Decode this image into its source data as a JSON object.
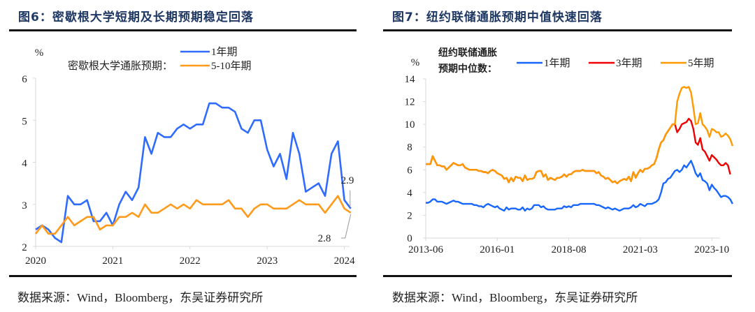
{
  "left": {
    "title": "图6：密歇根大学短期及长期预期稳定回落",
    "source": "数据来源：Wind，Bloomberg，东吴证券研究所"
  },
  "right": {
    "title": "图7：纽约联储通胀预期中值快速回落",
    "source": "数据来源：Wind，Bloomberg，东吴证券研究所"
  },
  "chart_data": [
    {
      "type": "line",
      "title": "图6：密歇根大学短期及长期预期稳定回落",
      "ylabel": "%",
      "legend_title": "密歇根大学通胀预期：",
      "legend_position": "top-center",
      "ylim": [
        2,
        6
      ],
      "yticks": [
        "2",
        "3",
        "4",
        "5",
        "6"
      ],
      "xticks": [
        "2020",
        "2021",
        "2022",
        "2023",
        "2024"
      ],
      "x_start": "2020-01",
      "x_end": "2024-02",
      "annotations": [
        "2.9",
        "2.8"
      ],
      "series": [
        {
          "name": "1年期",
          "color": "#2f6bff",
          "values": [
            2.4,
            2.5,
            2.4,
            2.2,
            2.1,
            3.2,
            3.0,
            3.0,
            3.1,
            2.6,
            2.6,
            2.8,
            2.5,
            3.0,
            3.3,
            3.1,
            3.4,
            4.6,
            4.2,
            4.7,
            4.6,
            4.6,
            4.8,
            4.9,
            4.8,
            4.9,
            4.9,
            5.4,
            5.4,
            5.3,
            5.3,
            5.2,
            4.8,
            4.7,
            5.0,
            5.0,
            4.3,
            3.9,
            4.2,
            3.6,
            4.7,
            4.2,
            3.3,
            3.4,
            3.5,
            3.2,
            4.2,
            4.5,
            3.1,
            2.9
          ]
        },
        {
          "name": "5-10年期",
          "color": "#ff9a1a",
          "values": [
            2.3,
            2.5,
            2.3,
            2.3,
            2.5,
            2.7,
            2.5,
            2.6,
            2.7,
            2.7,
            2.4,
            2.5,
            2.5,
            2.7,
            2.7,
            2.8,
            2.7,
            3.0,
            2.8,
            2.8,
            2.9,
            3.0,
            2.9,
            3.0,
            2.9,
            3.1,
            3.0,
            3.0,
            3.0,
            3.0,
            3.1,
            2.9,
            2.9,
            2.7,
            2.9,
            3.0,
            3.0,
            2.9,
            2.9,
            2.9,
            3.0,
            3.1,
            3.0,
            3.0,
            3.0,
            2.8,
            3.0,
            3.2,
            2.9,
            2.8
          ]
        }
      ]
    },
    {
      "type": "line",
      "title": "图7：纽约联储通胀预期中值快速回落",
      "ylabel": "%",
      "legend_title": "纽约联储通胀预期中位数：",
      "legend_position": "top",
      "ylim": [
        0,
        14
      ],
      "yticks": [
        "0",
        "2",
        "4",
        "6",
        "8",
        "10",
        "12",
        "14"
      ],
      "xticks": [
        "2013-06",
        "2016-01",
        "2018-08",
        "2021-03",
        "2023-10"
      ],
      "x_start": "2013-06",
      "x_end": "2024-01",
      "series": [
        {
          "name": "1年期",
          "color": "#1766ff",
          "values": [
            3.1,
            3.1,
            3.2,
            3.4,
            3.4,
            3.2,
            3.2,
            3.2,
            3.1,
            3.0,
            3.1,
            3.2,
            3.3,
            3.2,
            3.2,
            3.1,
            3.0,
            3.0,
            3.0,
            3.0,
            3.0,
            2.9,
            2.9,
            2.8,
            2.8,
            2.7,
            2.9,
            3.0,
            2.9,
            2.8,
            2.7,
            2.8,
            2.6,
            2.5,
            2.4,
            2.7,
            2.5,
            2.6,
            2.6,
            2.6,
            2.5,
            2.5,
            2.7,
            2.4,
            2.6,
            2.5,
            2.6,
            2.9,
            2.9,
            2.9,
            2.7,
            2.8,
            2.6,
            2.5,
            2.5,
            2.5,
            2.5,
            2.6,
            2.6,
            2.6,
            2.8,
            2.7,
            2.8,
            2.7,
            2.9,
            2.9,
            2.9,
            3.0,
            3.0,
            3.0,
            3.0,
            3.0,
            3.0,
            3.0,
            2.9,
            2.9,
            2.8,
            2.7,
            2.6,
            2.7,
            2.6,
            2.5,
            2.6,
            2.5,
            2.4,
            2.5,
            2.6,
            2.6,
            2.6,
            2.7,
            2.9,
            2.7,
            2.8,
            3.0,
            2.9,
            2.8,
            3.0,
            3.0,
            3.0,
            3.1,
            3.2,
            3.4,
            4.0,
            4.8,
            4.9,
            5.2,
            5.3,
            5.6,
            5.9,
            6.0,
            5.8,
            6.0,
            6.4,
            6.2,
            6.5,
            6.8,
            6.3,
            5.7,
            5.4,
            5.7,
            5.1,
            5.0,
            4.8,
            4.2,
            4.7,
            4.4,
            4.2,
            3.9,
            3.6,
            3.7,
            3.7,
            3.6,
            3.4,
            3.0
          ]
        },
        {
          "name": "3年期",
          "color": "#f00000",
          "values": [
            6.5,
            6.5,
            6.5,
            7.2,
            6.8,
            6.4,
            6.4,
            6.3,
            6.3,
            6.0,
            6.2,
            6.4,
            6.6,
            6.5,
            6.4,
            6.4,
            6.5,
            6.2,
            6.1,
            6.0,
            6.0,
            6.0,
            6.0,
            5.9,
            5.9,
            5.8,
            5.8,
            5.7,
            5.9,
            6.0,
            5.9,
            5.7,
            5.6,
            5.5,
            5.2,
            5.3,
            4.9,
            5.3,
            5.0,
            5.4,
            5.3,
            5.3,
            5.0,
            5.5,
            5.1,
            5.2,
            5.2,
            5.3,
            5.8,
            5.9,
            5.9,
            5.4,
            5.6,
            5.1,
            5.3,
            5.2,
            5.1,
            5.3,
            5.3,
            5.4,
            5.6,
            5.4,
            5.6,
            5.6,
            5.8,
            5.9,
            5.9,
            5.9,
            6.0,
            5.9,
            5.9,
            5.9,
            5.9,
            5.9,
            5.7,
            5.8,
            5.5,
            5.4,
            5.2,
            5.3,
            5.1,
            4.9,
            5.0,
            4.8,
            5.0,
            5.1,
            5.2,
            5.1,
            5.4,
            5.0,
            5.8,
            5.3,
            5.7,
            6.0,
            5.8,
            6.1,
            6.1,
            6.2,
            6.4,
            6.5,
            7.0,
            7.8,
            8.4,
            8.6,
            9.1,
            9.4,
            9.7,
            10.0,
            10.0,
            9.3,
            9.6,
            10.0,
            10.1,
            10.2,
            10.5,
            10.3,
            9.6,
            8.4,
            8.2,
            8.8,
            7.8,
            7.6,
            7.2,
            6.8,
            7.3,
            7.1,
            6.9,
            6.6,
            6.4,
            6.4,
            6.6,
            6.4,
            5.6
          ]
        },
        {
          "name": "5年期",
          "color": "#ff9900",
          "values": [
            6.5,
            6.5,
            6.5,
            7.2,
            6.8,
            6.4,
            6.4,
            6.3,
            6.3,
            6.0,
            6.2,
            6.4,
            6.6,
            6.5,
            6.4,
            6.4,
            6.5,
            6.2,
            6.1,
            6.0,
            6.0,
            6.0,
            6.0,
            5.9,
            5.9,
            5.8,
            5.8,
            5.7,
            5.9,
            6.0,
            5.9,
            5.7,
            5.6,
            5.5,
            5.2,
            5.3,
            4.9,
            5.3,
            5.0,
            5.4,
            5.3,
            5.3,
            5.0,
            5.5,
            5.1,
            5.2,
            5.2,
            5.3,
            5.8,
            5.9,
            5.9,
            5.4,
            5.6,
            5.1,
            5.3,
            5.2,
            5.1,
            5.3,
            5.3,
            5.4,
            5.6,
            5.4,
            5.6,
            5.6,
            5.8,
            5.9,
            5.9,
            5.9,
            6.0,
            5.9,
            5.9,
            5.9,
            5.9,
            5.9,
            5.7,
            5.8,
            5.5,
            5.4,
            5.2,
            5.3,
            5.1,
            4.9,
            5.0,
            4.8,
            5.0,
            5.1,
            5.2,
            5.1,
            5.4,
            5.0,
            5.8,
            5.3,
            5.7,
            6.0,
            5.8,
            6.1,
            6.1,
            6.2,
            6.4,
            6.5,
            7.0,
            7.8,
            8.4,
            8.6,
            9.1,
            9.4,
            9.7,
            10.0,
            10.0,
            12.0,
            12.7,
            13.2,
            13.3,
            13.2,
            13.3,
            12.8,
            11.5,
            10.0,
            10.1,
            11.0,
            10.0,
            9.8,
            9.5,
            8.9,
            9.6,
            9.5,
            9.3,
            9.3,
            8.9,
            9.0,
            9.2,
            9.0,
            8.7,
            8.1
          ]
        }
      ]
    }
  ]
}
